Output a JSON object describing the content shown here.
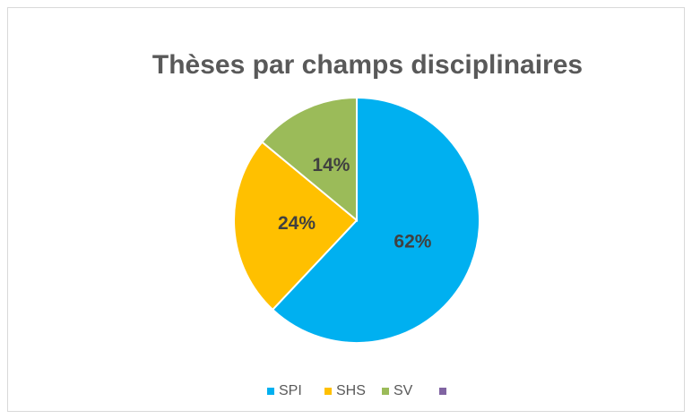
{
  "chart_data": {
    "type": "pie",
    "title": "Thèses par champs disciplinaires",
    "categories": [
      "SPI",
      "SHS",
      "SV",
      null
    ],
    "values": [
      62,
      24,
      14,
      0
    ],
    "value_labels": [
      "62%",
      "24%",
      "14%",
      null
    ],
    "colors": [
      "#00b0f0",
      "#ffc000",
      "#9bbb59",
      "#8064a2"
    ],
    "legend": "bottom"
  }
}
